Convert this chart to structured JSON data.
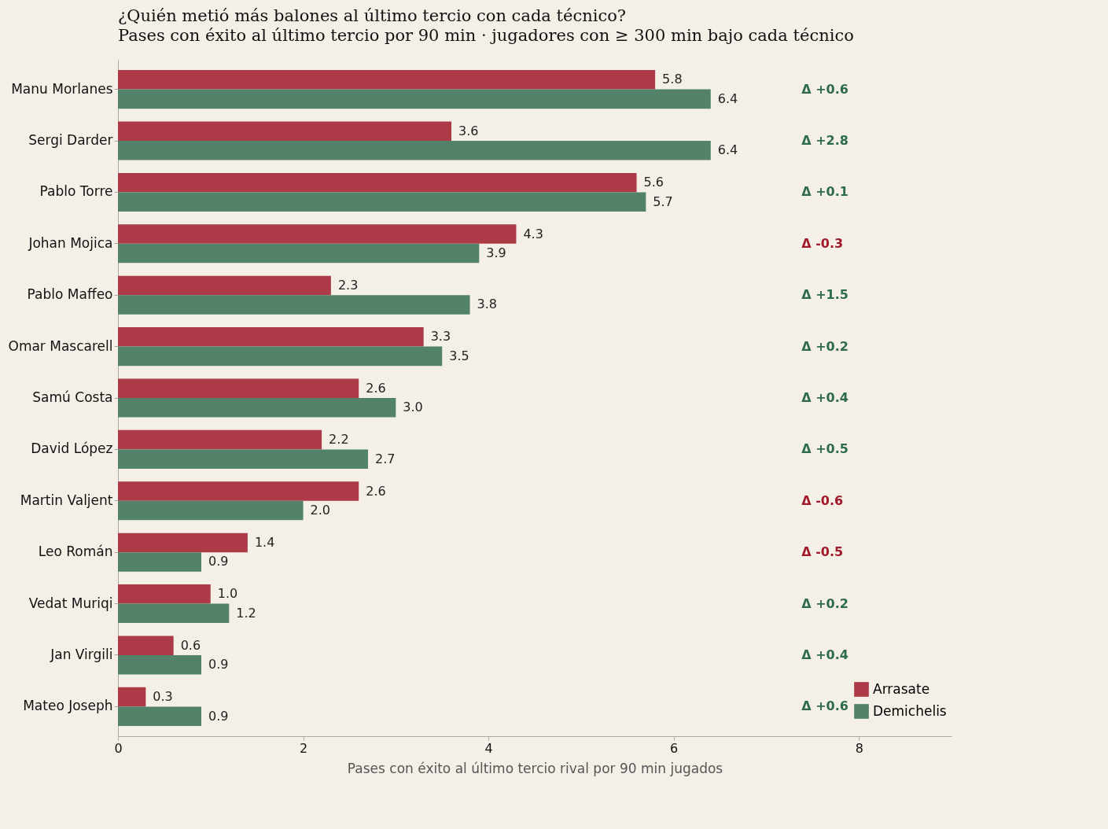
{
  "chart_data": {
    "type": "bar",
    "orientation": "horizontal",
    "title": "¿Quién metió más balones al último tercio con cada técnico?",
    "subtitle": "Pases con éxito al último tercio por 90 min · jugadores con ≥ 300 min bajo cada técnico",
    "xlabel": "Pases con éxito al último tercio rival por 90 min jugados",
    "categories": [
      "Manu Morlanes",
      "Sergi Darder",
      "Pablo Torre",
      "Johan Mojica",
      "Pablo Maffeo",
      "Omar Mascarell",
      "Samú Costa",
      "David López",
      "Martin Valjent",
      "Leo Román",
      "Vedat Muriqi",
      "Jan Virgili",
      "Mateo Joseph"
    ],
    "series": [
      {
        "name": "Arrasate",
        "color": "#ad3a47",
        "values": [
          5.8,
          3.6,
          5.6,
          4.3,
          2.3,
          3.3,
          2.6,
          2.2,
          2.6,
          1.4,
          1.0,
          0.6,
          0.3
        ],
        "value_labels": [
          "5.8",
          "3.6",
          "5.6",
          "4.3",
          "2.3",
          "3.3",
          "2.6",
          "2.2",
          "2.6",
          "1.4",
          "1.0",
          "0.6",
          "0.3"
        ]
      },
      {
        "name": "Demichelis",
        "color": "#52836a",
        "values": [
          6.4,
          6.4,
          5.7,
          3.9,
          3.8,
          3.5,
          3.0,
          2.7,
          2.0,
          0.9,
          1.2,
          0.9,
          0.9
        ],
        "value_labels": [
          "6.4",
          "6.4",
          "5.7",
          "3.9",
          "3.8",
          "3.5",
          "3.0",
          "2.7",
          "2.0",
          "0.9",
          "1.2",
          "0.9",
          "0.9"
        ]
      }
    ],
    "xlim": [
      0,
      9
    ],
    "xticks": [
      0,
      2,
      4,
      6,
      8
    ],
    "grid": false,
    "legend": "bottom right",
    "annotations": [
      "Δ +0.6",
      "Δ +2.8",
      "Δ +0.1",
      "Δ -0.3",
      "Δ +1.5",
      "Δ +0.2",
      "Δ +0.4",
      "Δ +0.5",
      "Δ -0.6",
      "Δ -0.5",
      "Δ +0.2",
      "Δ +0.4",
      "Δ +0.6"
    ]
  }
}
